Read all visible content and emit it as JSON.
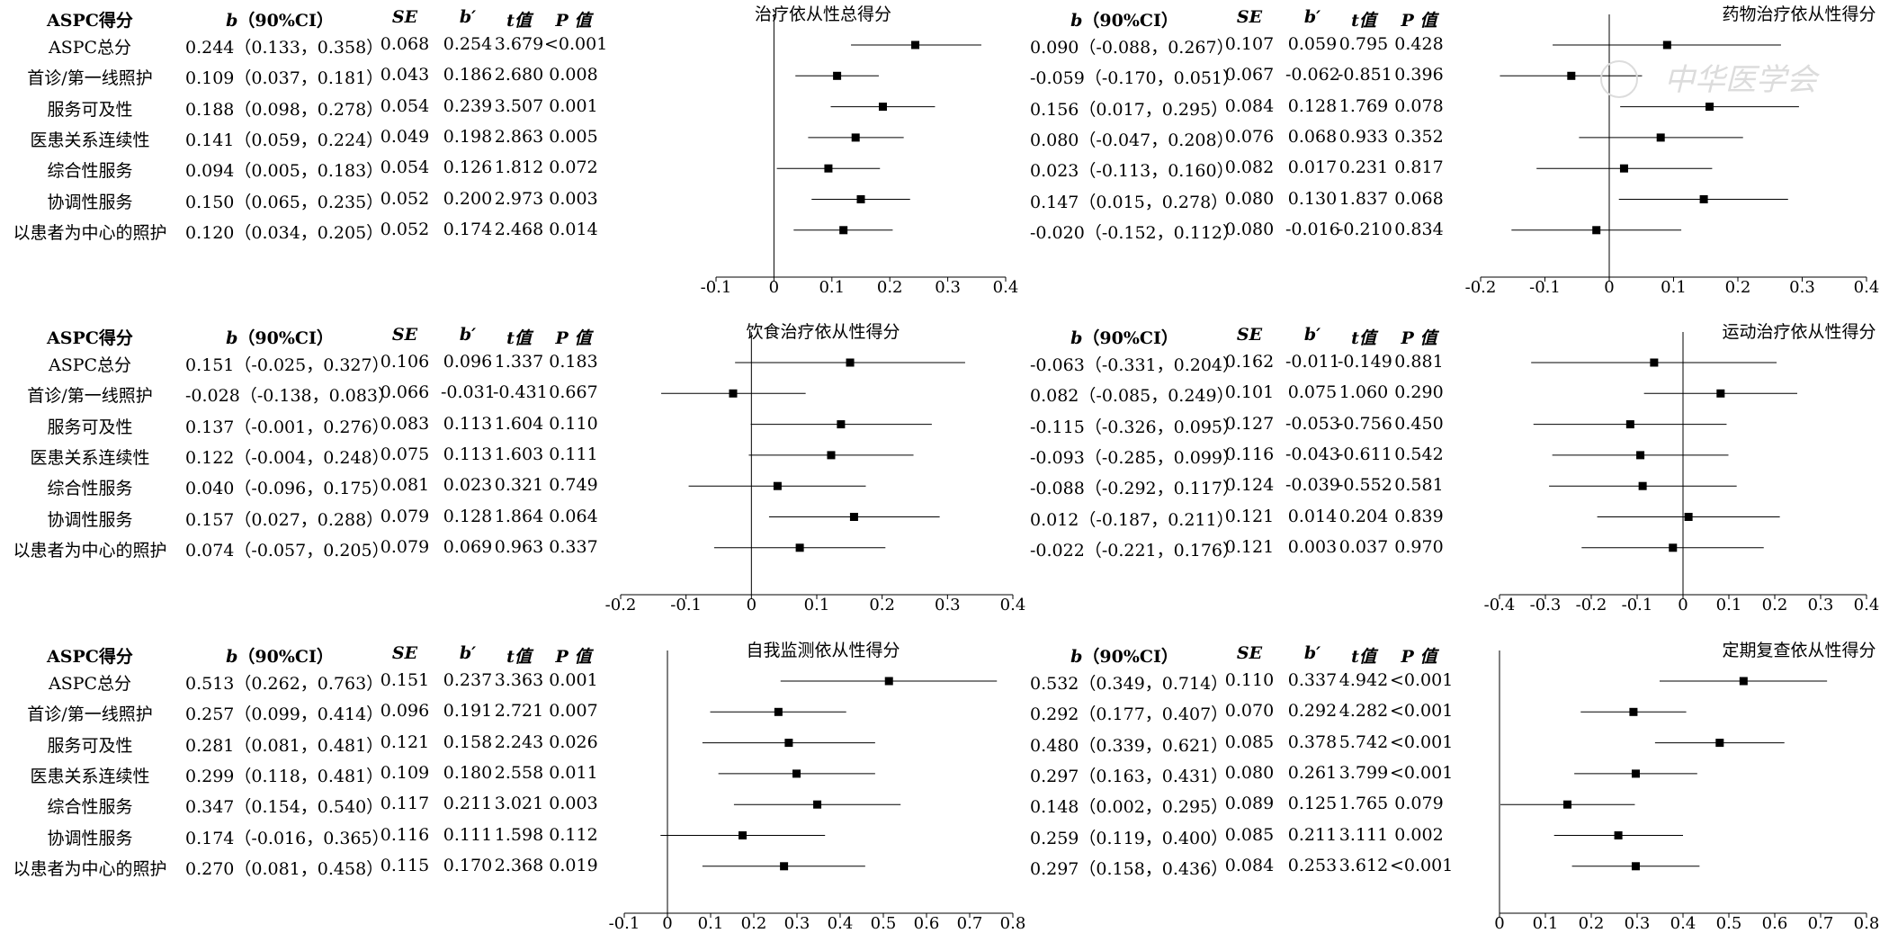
{
  "header": {
    "group_label": "ASPC得分",
    "b_label": "b",
    "ci_label": "（90%CI）",
    "se_label": "SE",
    "bstd_label": "b′",
    "t_label": "t值",
    "p_label": "P 值"
  },
  "row_labels": [
    "ASPC总分",
    "首诊/第一线照护",
    "服务可及性",
    "医患关系连续性",
    "综合性服务",
    "协调性服务",
    "以患者为中心的照护"
  ],
  "sections": [
    {
      "title": "治疗依从性总得分",
      "rows": [
        {
          "b_ci": "0.244（0.133，0.358）",
          "se": "0.068",
          "bstd": "0.254",
          "t": "3.679",
          "p": "<0.001"
        },
        {
          "b_ci": "0.109（0.037，0.181）",
          "se": "0.043",
          "bstd": "0.186",
          "t": "2.680",
          "p": "0.008"
        },
        {
          "b_ci": "0.188（0.098，0.278）",
          "se": "0.054",
          "bstd": "0.239",
          "t": "3.507",
          "p": "0.001"
        },
        {
          "b_ci": "0.141（0.059，0.224）",
          "se": "0.049",
          "bstd": "0.198",
          "t": "2.863",
          "p": "0.005"
        },
        {
          "b_ci": "0.094（0.005，0.183）",
          "se": "0.054",
          "bstd": "0.126",
          "t": "1.812",
          "p": "0.072"
        },
        {
          "b_ci": "0.150（0.065，0.235）",
          "se": "0.052",
          "bstd": "0.200",
          "t": "2.973",
          "p": "0.003"
        },
        {
          "b_ci": "0.120（0.034，0.205）",
          "se": "0.052",
          "bstd": "0.174",
          "t": "2.468",
          "p": "0.014"
        }
      ]
    },
    {
      "title": "药物治疗依从性得分",
      "rows": [
        {
          "b_ci": "0.090（-0.088，0.267）",
          "se": "0.107",
          "bstd": "0.059",
          "t": "0.795",
          "p": "0.428"
        },
        {
          "b_ci": "-0.059（-0.170，0.051）",
          "se": "0.067",
          "bstd": "-0.062",
          "t": "-0.851",
          "p": "0.396"
        },
        {
          "b_ci": "0.156（0.017，0.295）",
          "se": "0.084",
          "bstd": "0.128",
          "t": "1.769",
          "p": "0.078"
        },
        {
          "b_ci": "0.080（-0.047，0.208）",
          "se": "0.076",
          "bstd": "0.068",
          "t": "0.933",
          "p": "0.352"
        },
        {
          "b_ci": "0.023（-0.113，0.160）",
          "se": "0.082",
          "bstd": "0.017",
          "t": "0.231",
          "p": "0.817"
        },
        {
          "b_ci": "0.147（0.015，0.278）",
          "se": "0.080",
          "bstd": "0.130",
          "t": "1.837",
          "p": "0.068"
        },
        {
          "b_ci": "-0.020（-0.152，0.112）",
          "se": "0.080",
          "bstd": "-0.016",
          "t": "-0.210",
          "p": "0.834"
        }
      ]
    },
    {
      "title": "饮食治疗依从性得分",
      "rows": [
        {
          "b_ci": "0.151（-0.025，0.327）",
          "se": "0.106",
          "bstd": "0.096",
          "t": "1.337",
          "p": "0.183"
        },
        {
          "b_ci": "-0.028（-0.138，0.083）",
          "se": "0.066",
          "bstd": "-0.031",
          "t": "-0.431",
          "p": "0.667"
        },
        {
          "b_ci": "0.137（-0.001，0.276）",
          "se": "0.083",
          "bstd": "0.113",
          "t": "1.604",
          "p": "0.110"
        },
        {
          "b_ci": "0.122（-0.004，0.248）",
          "se": "0.075",
          "bstd": "0.113",
          "t": "1.603",
          "p": "0.111"
        },
        {
          "b_ci": "0.040（-0.096，0.175）",
          "se": "0.081",
          "bstd": "0.023",
          "t": "0.321",
          "p": "0.749"
        },
        {
          "b_ci": "0.157（0.027，0.288）",
          "se": "0.079",
          "bstd": "0.128",
          "t": "1.864",
          "p": "0.064"
        },
        {
          "b_ci": "0.074（-0.057，0.205）",
          "se": "0.079",
          "bstd": "0.069",
          "t": "0.963",
          "p": "0.337"
        }
      ]
    },
    {
      "title": "运动治疗依从性得分",
      "rows": [
        {
          "b_ci": "-0.063（-0.331，0.204）",
          "se": "0.162",
          "bstd": "-0.011",
          "t": "-0.149",
          "p": "0.881"
        },
        {
          "b_ci": "0.082（-0.085，0.249）",
          "se": "0.101",
          "bstd": "0.075",
          "t": "1.060",
          "p": "0.290"
        },
        {
          "b_ci": "-0.115（-0.326，0.095）",
          "se": "0.127",
          "bstd": "-0.053",
          "t": "-0.756",
          "p": "0.450"
        },
        {
          "b_ci": "-0.093（-0.285，0.099）",
          "se": "0.116",
          "bstd": "-0.043",
          "t": "-0.611",
          "p": "0.542"
        },
        {
          "b_ci": "-0.088（-0.292，0.117）",
          "se": "0.124",
          "bstd": "-0.039",
          "t": "-0.552",
          "p": "0.581"
        },
        {
          "b_ci": "0.012（-0.187，0.211）",
          "se": "0.121",
          "bstd": "0.014",
          "t": "0.204",
          "p": "0.839"
        },
        {
          "b_ci": "-0.022（-0.221，0.176）",
          "se": "0.121",
          "bstd": "0.003",
          "t": "0.037",
          "p": "0.970"
        }
      ]
    },
    {
      "title": "自我监测依从性得分",
      "rows": [
        {
          "b_ci": "0.513（0.262，0.763）",
          "se": "0.151",
          "bstd": "0.237",
          "t": "3.363",
          "p": "0.001"
        },
        {
          "b_ci": "0.257（0.099，0.414）",
          "se": "0.096",
          "bstd": "0.191",
          "t": "2.721",
          "p": "0.007"
        },
        {
          "b_ci": "0.281（0.081，0.481）",
          "se": "0.121",
          "bstd": "0.158",
          "t": "2.243",
          "p": "0.026"
        },
        {
          "b_ci": "0.299（0.118，0.481）",
          "se": "0.109",
          "bstd": "0.180",
          "t": "2.558",
          "p": "0.011"
        },
        {
          "b_ci": "0.347（0.154，0.540）",
          "se": "0.117",
          "bstd": "0.211",
          "t": "3.021",
          "p": "0.003"
        },
        {
          "b_ci": "0.174（-0.016，0.365）",
          "se": "0.116",
          "bstd": "0.111",
          "t": "1.598",
          "p": "0.112"
        },
        {
          "b_ci": "0.270（0.081，0.458）",
          "se": "0.115",
          "bstd": "0.170",
          "t": "2.368",
          "p": "0.019"
        }
      ]
    },
    {
      "title": "定期复查依从性得分",
      "rows": [
        {
          "b_ci": "0.532（0.349，0.714）",
          "se": "0.110",
          "bstd": "0.337",
          "t": "4.942",
          "p": "<0.001"
        },
        {
          "b_ci": "0.292（0.177，0.407）",
          "se": "0.070",
          "bstd": "0.292",
          "t": "4.282",
          "p": "<0.001"
        },
        {
          "b_ci": "0.480（0.339，0.621）",
          "se": "0.085",
          "bstd": "0.378",
          "t": "5.742",
          "p": "<0.001"
        },
        {
          "b_ci": "0.297（0.163，0.431）",
          "se": "0.080",
          "bstd": "0.261",
          "t": "3.799",
          "p": "<0.001"
        },
        {
          "b_ci": "0.148（0.002，0.295）",
          "se": "0.089",
          "bstd": "0.125",
          "t": "1.765",
          "p": "0.079"
        },
        {
          "b_ci": "0.259（0.119，0.400）",
          "se": "0.085",
          "bstd": "0.211",
          "t": "3.111",
          "p": "0.002"
        },
        {
          "b_ci": "0.297（0.158，0.436）",
          "se": "0.084",
          "bstd": "0.253",
          "t": "3.612",
          "p": "<0.001"
        }
      ]
    }
  ],
  "watermark": "中华医学会",
  "chart_data": [
    {
      "type": "scatter",
      "title": "治疗依从性总得分",
      "xlim": [
        -0.1,
        0.4
      ],
      "ticks": [
        "-0.1",
        "0",
        "0.1",
        "0.2",
        "0.3",
        "0.4"
      ],
      "tick_values": [
        -0.1,
        0,
        0.1,
        0.2,
        0.3,
        0.4
      ],
      "estimates": [
        0.244,
        0.109,
        0.188,
        0.141,
        0.094,
        0.15,
        0.12
      ],
      "lower": [
        0.133,
        0.037,
        0.098,
        0.059,
        0.005,
        0.065,
        0.034
      ],
      "upper": [
        0.358,
        0.181,
        0.278,
        0.224,
        0.183,
        0.235,
        0.205
      ]
    },
    {
      "type": "scatter",
      "title": "药物治疗依从性得分",
      "xlim": [
        -0.2,
        0.4
      ],
      "ticks": [
        "-0.2",
        "-0.1",
        "0",
        "0.1",
        "0.2",
        "0.3",
        "0.4"
      ],
      "tick_values": [
        -0.2,
        -0.1,
        0,
        0.1,
        0.2,
        0.3,
        0.4
      ],
      "estimates": [
        0.09,
        -0.059,
        0.156,
        0.08,
        0.023,
        0.147,
        -0.02
      ],
      "lower": [
        -0.088,
        -0.17,
        0.017,
        -0.047,
        -0.113,
        0.015,
        -0.152
      ],
      "upper": [
        0.267,
        0.051,
        0.295,
        0.208,
        0.16,
        0.278,
        0.112
      ]
    },
    {
      "type": "scatter",
      "title": "饮食治疗依从性得分",
      "xlim": [
        -0.2,
        0.4
      ],
      "ticks": [
        "-0.2",
        "-0.1",
        "0",
        "0.1",
        "0.2",
        "0.3",
        "0.4"
      ],
      "tick_values": [
        -0.2,
        -0.1,
        0,
        0.1,
        0.2,
        0.3,
        0.4
      ],
      "estimates": [
        0.151,
        -0.028,
        0.137,
        0.122,
        0.04,
        0.157,
        0.074
      ],
      "lower": [
        -0.025,
        -0.138,
        -0.001,
        -0.004,
        -0.096,
        0.027,
        -0.057
      ],
      "upper": [
        0.327,
        0.083,
        0.276,
        0.248,
        0.175,
        0.288,
        0.205
      ]
    },
    {
      "type": "scatter",
      "title": "运动治疗依从性得分",
      "xlim": [
        -0.4,
        0.4
      ],
      "ticks": [
        "-0.4",
        "-0.3",
        "-0.2",
        "-0.1",
        "0",
        "0.1",
        "0.2",
        "0.3",
        "0.4"
      ],
      "tick_values": [
        -0.4,
        -0.3,
        -0.2,
        -0.1,
        0,
        0.1,
        0.2,
        0.3,
        0.4
      ],
      "estimates": [
        -0.063,
        0.082,
        -0.115,
        -0.093,
        -0.088,
        0.012,
        -0.022
      ],
      "lower": [
        -0.331,
        -0.085,
        -0.326,
        -0.285,
        -0.292,
        -0.187,
        -0.221
      ],
      "upper": [
        0.204,
        0.249,
        0.095,
        0.099,
        0.117,
        0.211,
        0.176
      ]
    },
    {
      "type": "scatter",
      "title": "自我监测依从性得分",
      "xlim": [
        -0.1,
        0.8
      ],
      "ticks": [
        "-0.1",
        "0",
        "0.1",
        "0.2",
        "0.3",
        "0.4",
        "0.5",
        "0.6",
        "0.7",
        "0.8"
      ],
      "tick_values": [
        -0.1,
        0,
        0.1,
        0.2,
        0.3,
        0.4,
        0.5,
        0.6,
        0.7,
        0.8
      ],
      "estimates": [
        0.513,
        0.257,
        0.281,
        0.299,
        0.347,
        0.174,
        0.27
      ],
      "lower": [
        0.262,
        0.099,
        0.081,
        0.118,
        0.154,
        -0.016,
        0.081
      ],
      "upper": [
        0.763,
        0.414,
        0.481,
        0.481,
        0.54,
        0.365,
        0.458
      ]
    },
    {
      "type": "scatter",
      "title": "定期复查依从性得分",
      "xlim": [
        0,
        0.8
      ],
      "ticks": [
        "0",
        "0.1",
        "0.2",
        "0.3",
        "0.4",
        "0.5",
        "0.6",
        "0.7",
        "0.8"
      ],
      "tick_values": [
        0,
        0.1,
        0.2,
        0.3,
        0.4,
        0.5,
        0.6,
        0.7,
        0.8
      ],
      "estimates": [
        0.532,
        0.292,
        0.48,
        0.297,
        0.148,
        0.259,
        0.297
      ],
      "lower": [
        0.349,
        0.177,
        0.339,
        0.163,
        0.002,
        0.119,
        0.158
      ],
      "upper": [
        0.714,
        0.407,
        0.621,
        0.431,
        0.295,
        0.4,
        0.436
      ]
    }
  ]
}
